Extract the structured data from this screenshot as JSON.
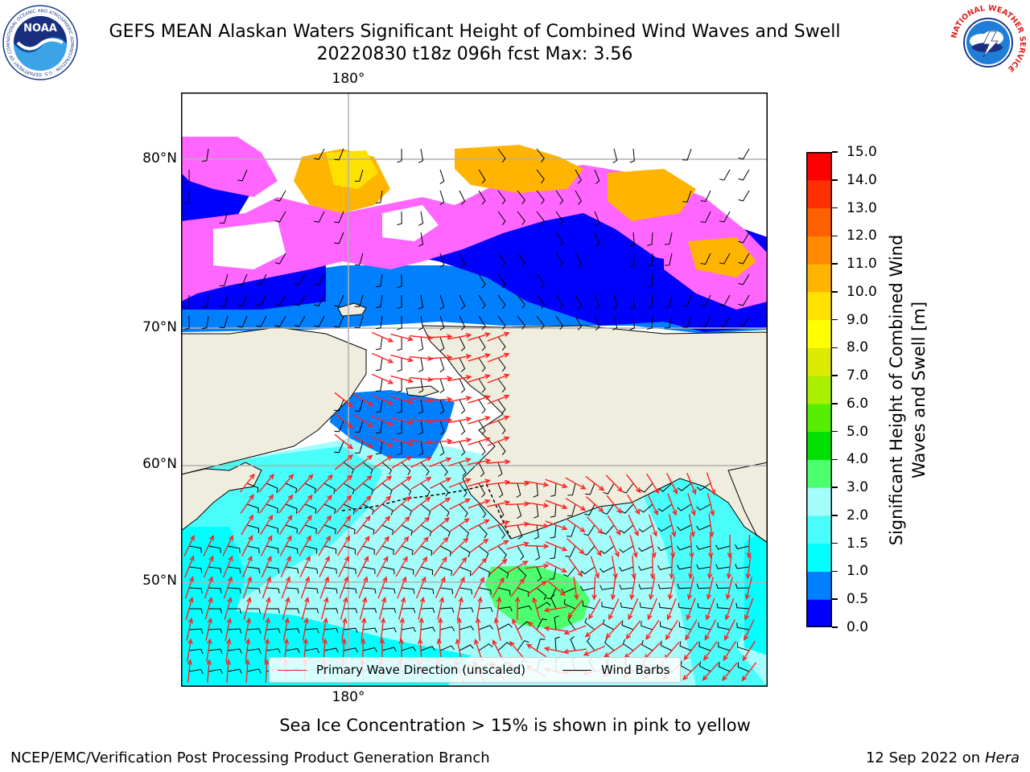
{
  "header": {
    "title_line1": "GEFS MEAN Alaskan Waters Significant Height of Combined Wind Waves and Swell",
    "title_line2": "20220830 t18z 096h fcst   Max: 3.56"
  },
  "logos": {
    "noaa_text": "NOAA",
    "noaa_ring_text": "NATIONAL OCEANIC AND ATMOSPHERIC ADMINISTRATION · U.S. DEPARTMENT OF COMMERCE",
    "nws_ring_text": "NATIONAL WEATHER SERVICE"
  },
  "map": {
    "lat_labels": [
      "80°N",
      "70°N",
      "60°N",
      "50°N"
    ],
    "lon_label_top": "180°",
    "lon_label_bottom": "180°",
    "colors": {
      "ocean_light": "#a3fdfa",
      "ocean_cyan": "#49fdfb",
      "ocean_bright": "#00ffff",
      "ocean_blue": "#0080ff",
      "ocean_deep": "#0000ff",
      "ice_pink": "#ff66ff",
      "ice_orange": "#ffb400",
      "ice_yellow": "#ffe100",
      "land": "#efedde",
      "green": "#4cff6f",
      "arrow": "#ff2020",
      "barb": "#000000",
      "grid": "#b0b0b0"
    }
  },
  "legend": {
    "primary_wave_label": "Primary Wave Direction (unscaled)",
    "wind_barbs_label": "Wind Barbs"
  },
  "colorbar": {
    "label": "Significant Height of Combined Wind Waves and Swell [m]",
    "ticks": [
      "0.0",
      "0.5",
      "1.0",
      "1.5",
      "2.0",
      "3.0",
      "4.0",
      "5.0",
      "6.0",
      "7.0",
      "8.0",
      "9.0",
      "10.0",
      "11.0",
      "12.0",
      "13.0",
      "14.0",
      "15.0"
    ],
    "colors": [
      "#0000ff",
      "#0080ff",
      "#00ffff",
      "#49fdfb",
      "#a3fdfa",
      "#4cff6f",
      "#00e000",
      "#55ee00",
      "#aaee00",
      "#dde900",
      "#ffff00",
      "#ffe100",
      "#ffb400",
      "#ff8a00",
      "#ff6000",
      "#ff3000",
      "#ff0000"
    ]
  },
  "note": "Sea Ice Concentration > 15% is shown in pink to yellow",
  "footer": {
    "left": "NCEP/EMC/Verification Post Processing Product Generation Branch",
    "right_prefix": "12 Sep 2022 on",
    "right_host": "Hera"
  }
}
